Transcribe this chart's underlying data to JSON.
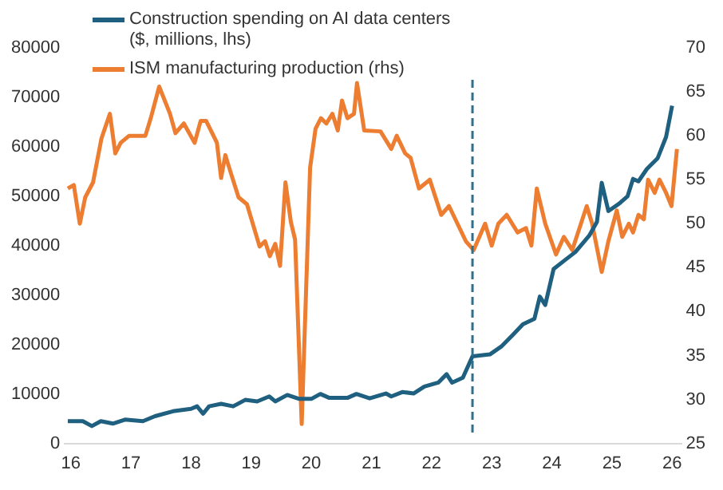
{
  "chart_data": {
    "type": "line",
    "xlim": [
      2015.9,
      2026.15
    ],
    "xticks": [
      {
        "value": 2016,
        "label": "16"
      },
      {
        "value": 2017,
        "label": "17"
      },
      {
        "value": 2018,
        "label": "18"
      },
      {
        "value": 2019,
        "label": "19"
      },
      {
        "value": 2020,
        "label": "20"
      },
      {
        "value": 2021,
        "label": "21"
      },
      {
        "value": 2022,
        "label": "22"
      },
      {
        "value": 2023,
        "label": "23"
      },
      {
        "value": 2024,
        "label": "24"
      },
      {
        "value": 2025,
        "label": "25"
      },
      {
        "value": 2026,
        "label": "26"
      }
    ],
    "ylim": [
      0,
      80000
    ],
    "yticks": [
      0,
      10000,
      20000,
      30000,
      40000,
      50000,
      60000,
      70000,
      80000
    ],
    "y2lim": [
      25,
      70
    ],
    "y2ticks": [
      25,
      30,
      35,
      40,
      45,
      50,
      55,
      60,
      65,
      70
    ],
    "grid": false,
    "legend": "top left",
    "marker": "none",
    "line_style": "solid",
    "ref_lines": [
      {
        "axis": "x",
        "value": 2022.68,
        "color": "#2e6f8e",
        "line_style": "dashed"
      }
    ],
    "series": [
      {
        "name": "Construction spending on AI data centers ($, millions, lhs)",
        "color": "#1f5f7f",
        "x": [
          2015.95,
          2016.2,
          2016.35,
          2016.5,
          2016.7,
          2016.9,
          2017.2,
          2017.4,
          2017.7,
          2018.0,
          2018.1,
          2018.2,
          2018.3,
          2018.5,
          2018.7,
          2018.9,
          2019.1,
          2019.3,
          2019.4,
          2019.6,
          2019.8,
          2020.0,
          2020.15,
          2020.3,
          2020.6,
          2020.75,
          2020.97,
          2021.24,
          2021.33,
          2021.52,
          2021.7,
          2021.88,
          2022.11,
          2022.25,
          2022.34,
          2022.52,
          2022.68,
          2022.97,
          2023.16,
          2023.34,
          2023.52,
          2023.71,
          2023.8,
          2023.89,
          2024.03,
          2024.21,
          2024.39,
          2024.62,
          2024.75,
          2024.83,
          2024.94,
          2025.12,
          2025.26,
          2025.35,
          2025.44,
          2025.58,
          2025.76,
          2025.9,
          2026.0
        ],
        "values": [
          4500,
          4500,
          3500,
          4500,
          4000,
          4800,
          4500,
          5500,
          6500,
          7000,
          7500,
          6000,
          7500,
          8000,
          7500,
          8800,
          8500,
          9500,
          8500,
          9800,
          9000,
          9000,
          10000,
          9200,
          9200,
          10000,
          9100,
          10100,
          9500,
          10400,
          10100,
          11500,
          12300,
          14000,
          12300,
          13300,
          17600,
          18000,
          19600,
          21800,
          24100,
          25200,
          29700,
          28000,
          35300,
          37000,
          38700,
          42000,
          44800,
          52700,
          47000,
          48500,
          50000,
          53500,
          53000,
          55500,
          57700,
          62000,
          68300
        ]
      },
      {
        "name": "ISM manufacturing production (rhs)",
        "color": "#ed7d31",
        "axis": "y2",
        "x": [
          2015.95,
          2016.05,
          2016.15,
          2016.24,
          2016.37,
          2016.51,
          2016.65,
          2016.74,
          2016.83,
          2016.97,
          2017.24,
          2017.33,
          2017.47,
          2017.65,
          2017.74,
          2017.88,
          2018.06,
          2018.16,
          2018.25,
          2018.43,
          2018.5,
          2018.57,
          2018.66,
          2018.79,
          2018.93,
          2019.14,
          2019.23,
          2019.31,
          2019.4,
          2019.48,
          2019.57,
          2019.66,
          2019.73,
          2019.84,
          2019.98,
          2020.07,
          2020.16,
          2020.25,
          2020.35,
          2020.44,
          2020.51,
          2020.6,
          2020.71,
          2020.76,
          2020.88,
          2021.15,
          2021.33,
          2021.42,
          2021.56,
          2021.65,
          2021.79,
          2021.97,
          2022.16,
          2022.29,
          2022.43,
          2022.57,
          2022.7,
          2022.89,
          2023.0,
          2023.11,
          2023.25,
          2023.43,
          2023.57,
          2023.66,
          2023.75,
          2023.89,
          2024.07,
          2024.2,
          2024.34,
          2024.58,
          2024.67,
          2024.83,
          2024.94,
          2025.08,
          2025.17,
          2025.28,
          2025.35,
          2025.44,
          2025.53,
          2025.6,
          2025.71,
          2025.79,
          2025.9,
          2025.99,
          2026.08
        ],
        "values": [
          54,
          54.4,
          50,
          53,
          54.7,
          59.7,
          62.5,
          58,
          59.2,
          60,
          60,
          62,
          65.6,
          62.5,
          60.3,
          61.4,
          59.2,
          61.7,
          61.7,
          59.2,
          55.2,
          57.8,
          55.8,
          53,
          52.2,
          47.4,
          48,
          46.3,
          47.7,
          45.2,
          54.7,
          50.2,
          48.2,
          27.2,
          56.4,
          60.8,
          62,
          61.4,
          62.5,
          60.6,
          64,
          62,
          62.5,
          66,
          60.6,
          60.5,
          58.5,
          60,
          58,
          57.5,
          54,
          55,
          51,
          52,
          50,
          48,
          47,
          50,
          47.5,
          50,
          51,
          49,
          49.5,
          47.5,
          54,
          50,
          46.5,
          48.5,
          47,
          52,
          50,
          44.5,
          48,
          51.5,
          48.5,
          50,
          49,
          51,
          50.5,
          55,
          53.5,
          55,
          53.5,
          52,
          58.5
        ]
      }
    ]
  }
}
